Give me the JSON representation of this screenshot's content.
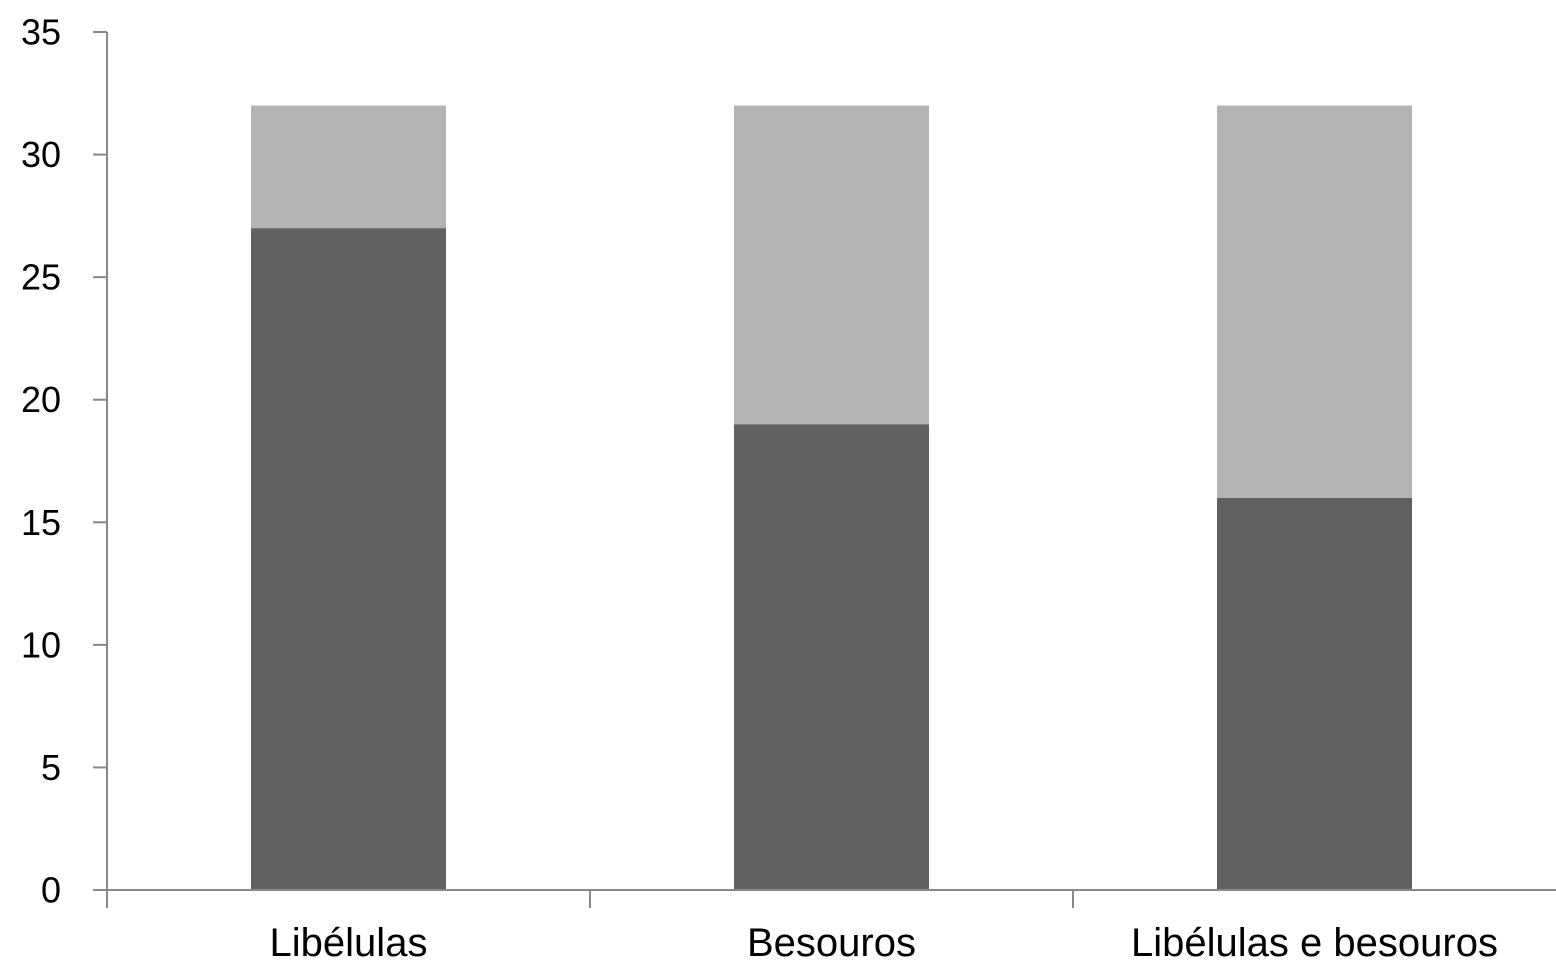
{
  "colors": {
    "series_dark": "#616161",
    "series_light": "#b3b3b3",
    "axis": "#888888",
    "background": "#ffffff"
  },
  "chart_data": {
    "type": "bar",
    "stacked": true,
    "categories": [
      "Libélulas",
      "Besouros",
      "Libélulas e besouros"
    ],
    "series": [
      {
        "values": [
          27,
          19,
          16
        ],
        "color": "#616161"
      },
      {
        "values": [
          5,
          13,
          16
        ],
        "color": "#b3b3b3"
      }
    ],
    "ylim": [
      0,
      35
    ],
    "yticks": [
      0,
      5,
      10,
      15,
      20,
      25,
      30,
      35
    ],
    "grid": false,
    "legend": "none"
  }
}
